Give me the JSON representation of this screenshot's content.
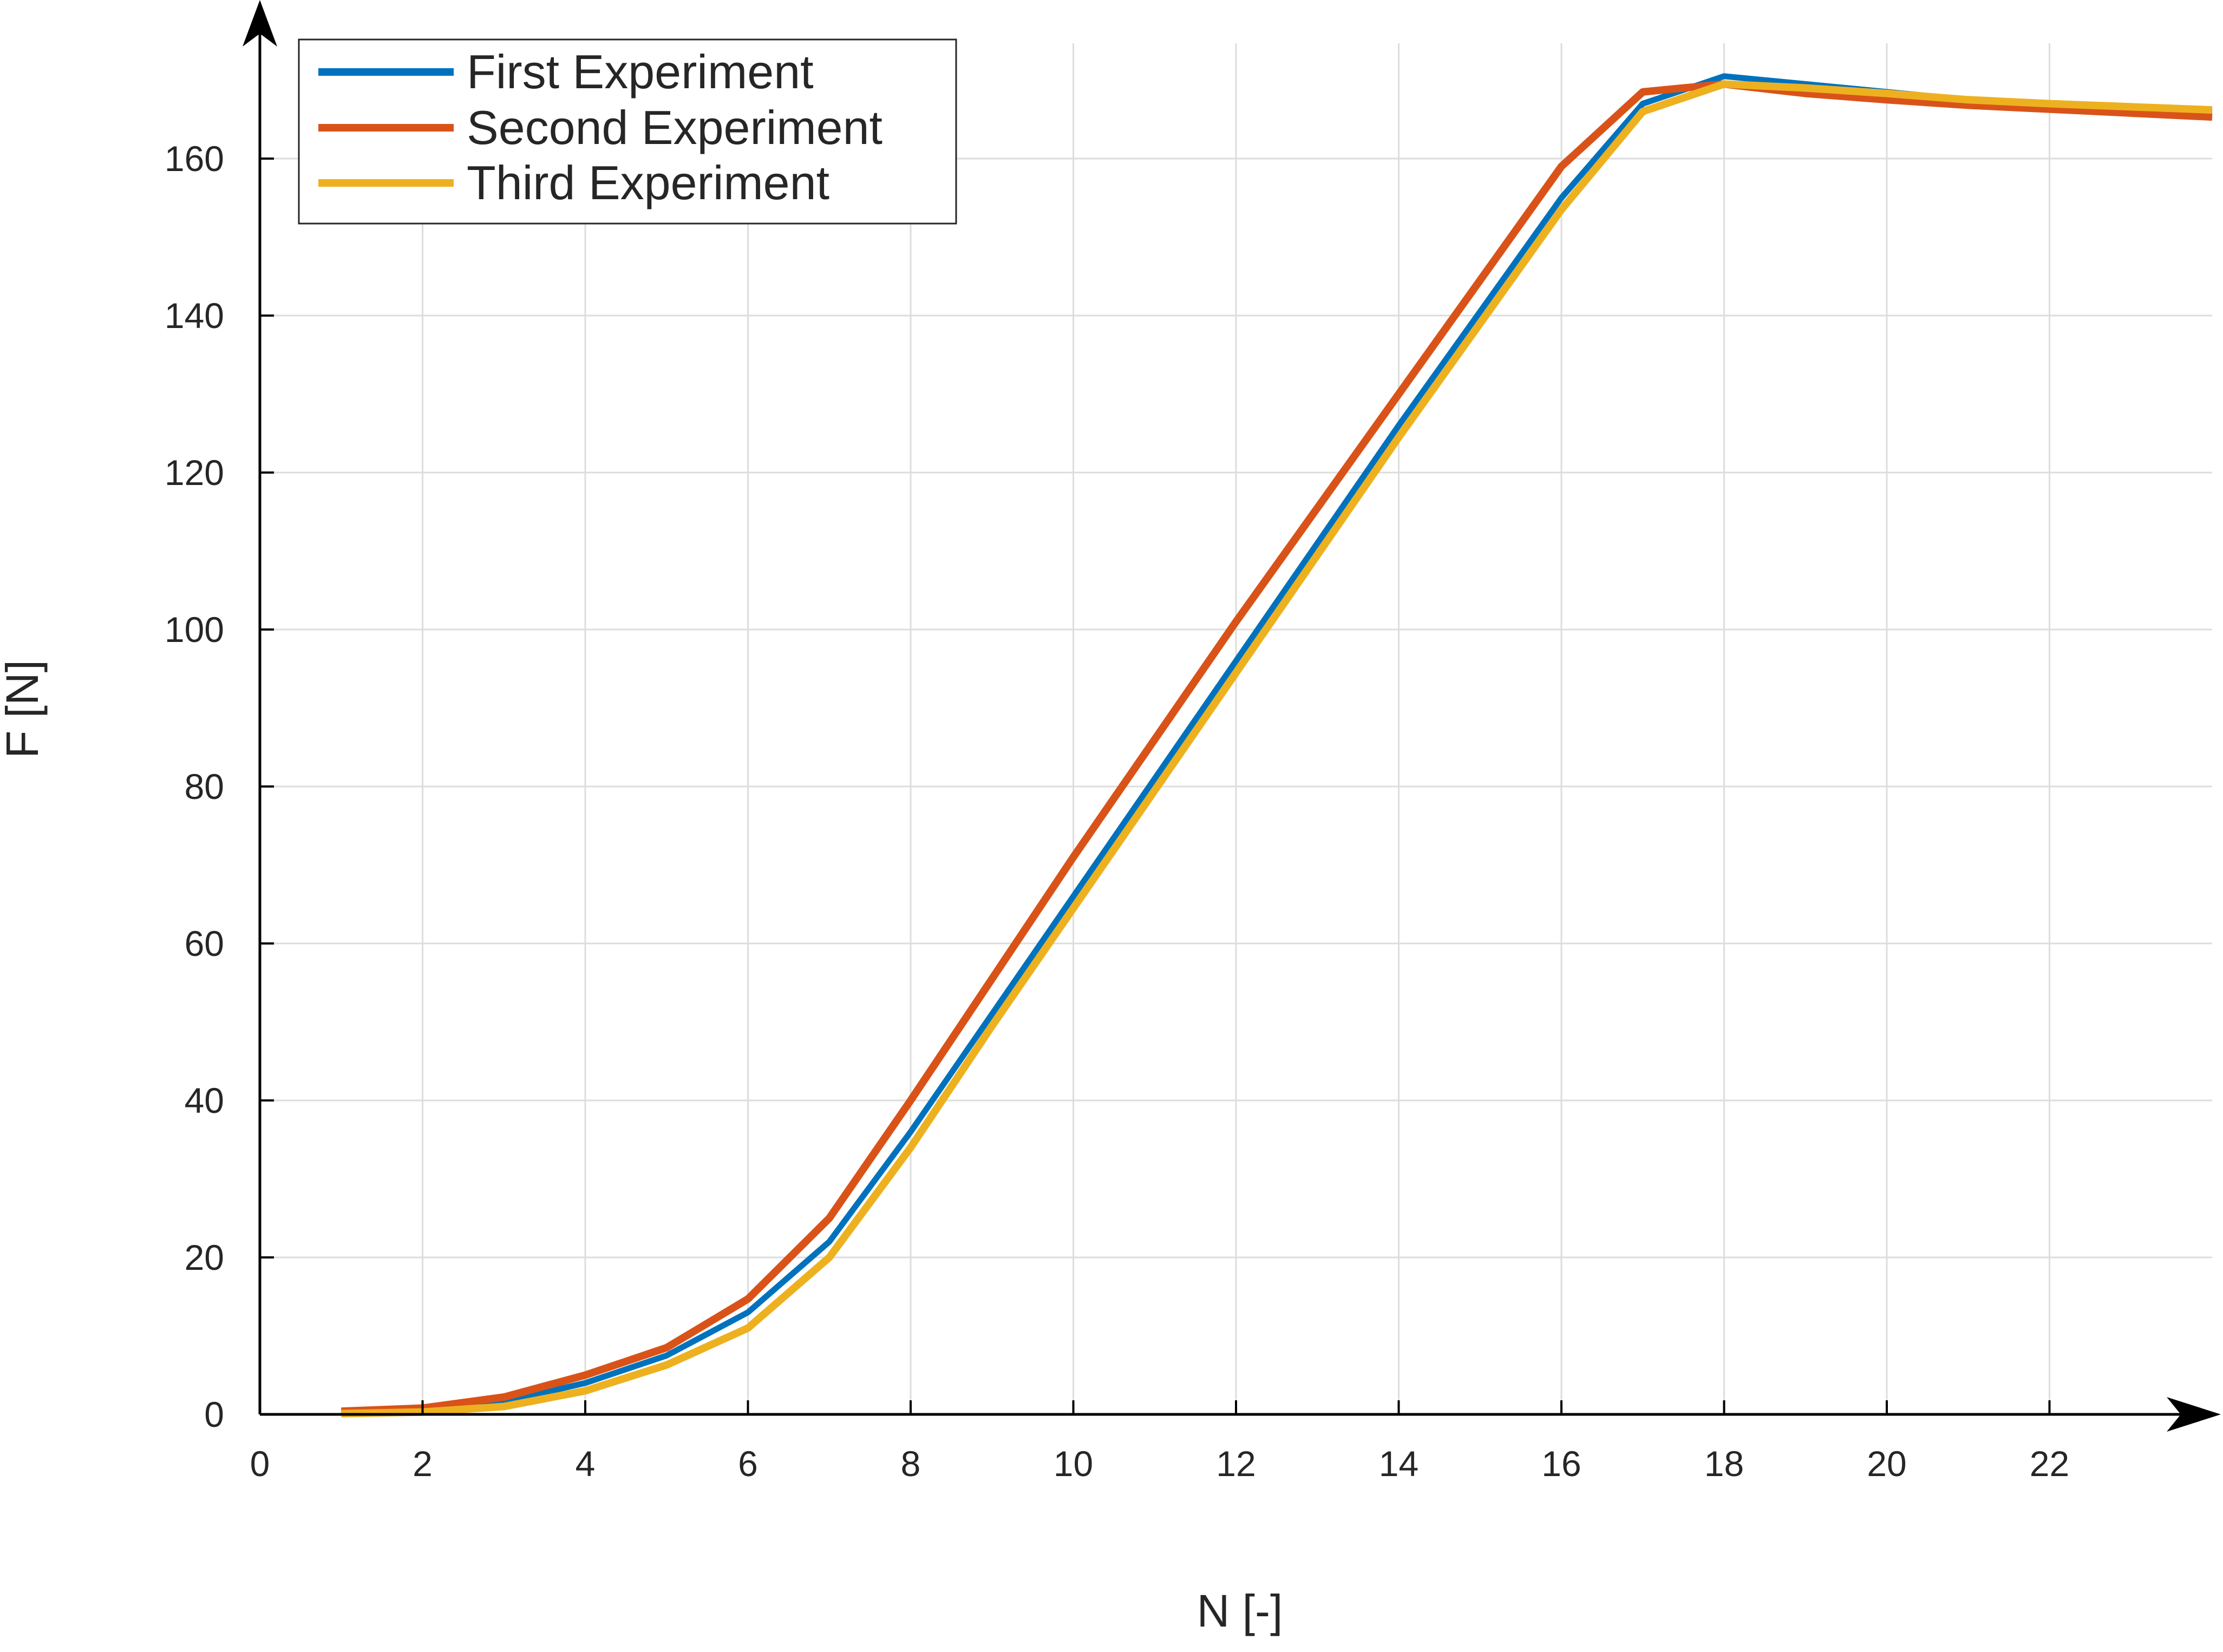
{
  "chart_data": {
    "type": "line",
    "title": "",
    "xlabel": "N [-]",
    "ylabel": "F [N]",
    "xlim": [
      0,
      24
    ],
    "ylim": [
      0,
      170
    ],
    "xticks": [
      0,
      2,
      4,
      6,
      8,
      10,
      12,
      14,
      16,
      18,
      20,
      22
    ],
    "yticks": [
      0,
      20,
      40,
      60,
      80,
      100,
      120,
      140,
      160
    ],
    "grid": true,
    "legend_position": "top-left",
    "series": [
      {
        "name": "First Experiment",
        "color": "#0072BD",
        "x": [
          1,
          2,
          3,
          4,
          5,
          6,
          7,
          8,
          9,
          10,
          11,
          12,
          13,
          14,
          15,
          16,
          17,
          18,
          19,
          20,
          21,
          22,
          23,
          24
        ],
        "y": [
          0.2,
          0.5,
          1.6,
          4.0,
          7.5,
          13.0,
          22.0,
          36.0,
          51.0,
          66.0,
          81.0,
          96.0,
          111.0,
          126.0,
          140.5,
          155.0,
          167.0,
          170.5,
          169.5,
          168.5,
          167.5,
          167.0,
          166.5,
          166.0
        ]
      },
      {
        "name": "Second Experiment",
        "color": "#D95319",
        "x": [
          1,
          2,
          3,
          4,
          5,
          6,
          7,
          8,
          9,
          10,
          11,
          12,
          13,
          14,
          15,
          16,
          17,
          18,
          19,
          20,
          21,
          22,
          23,
          24
        ],
        "y": [
          0.4,
          0.8,
          2.2,
          5.0,
          8.5,
          14.7,
          25.0,
          40.0,
          55.5,
          71.0,
          86.0,
          101.0,
          115.5,
          130.0,
          144.5,
          159.0,
          168.5,
          169.5,
          168.3,
          167.5,
          166.8,
          166.3,
          165.8,
          165.3
        ]
      },
      {
        "name": "Third Experiment",
        "color": "#EDB120",
        "x": [
          1,
          2,
          3,
          4,
          5,
          6,
          7,
          8,
          9,
          10,
          11,
          12,
          13,
          14,
          15,
          16,
          17,
          18,
          19,
          20,
          21,
          22,
          23,
          24
        ],
        "y": [
          0.1,
          0.3,
          1.0,
          3.0,
          6.3,
          11.0,
          20.0,
          34.0,
          49.5,
          64.5,
          79.5,
          94.5,
          109.5,
          124.5,
          139.0,
          153.5,
          166.0,
          169.5,
          169.0,
          168.3,
          167.5,
          167.0,
          166.6,
          166.2
        ]
      }
    ]
  }
}
